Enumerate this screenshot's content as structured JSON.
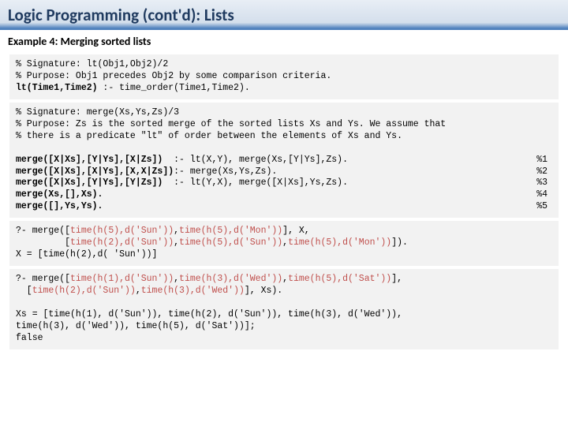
{
  "title": "Logic Programming (cont'd):   Lists",
  "subtitle": "Example 4:  Merging sorted lists",
  "block1": {
    "l1": "% Signature: lt(Obj1,Obj2)/2",
    "l2": "% Purpose: Obj1 precedes Obj2 by some comparison criteria.",
    "l3_pred": "lt(Time1,Time2)",
    "l3_rest": " :- time_order(Time1,Time2)."
  },
  "block2": {
    "l1": "% Signature: merge(Xs,Ys,Zs)/3",
    "l2": "% Purpose: Zs is the sorted merge of the sorted lists Xs and Ys. We assume that",
    "l3": "% there is a predicate \"lt\" of order between the elements of Xs and Ys.",
    "c1_head": "merge([X|Xs],[Y|Ys],[X|Zs])",
    "c1_body": "  :- lt(X,Y), merge(Xs,[Y|Ys],Zs).",
    "c1_tag": "%1",
    "c2_head": "merge([X|Xs],[X|Ys],[X,X|Zs])",
    "c2_body": ":- merge(Xs,Ys,Zs).",
    "c2_tag": "%2",
    "c3_head": "merge([X|Xs],[Y|Ys],[Y|Zs])",
    "c3_body": "  :- lt(Y,X), merge([X|Xs],Ys,Zs).",
    "c3_tag": "%3",
    "c4_head": "merge(Xs,[],Xs).",
    "c4_tag": "%4",
    "c5_head": "merge([],Ys,Ys).",
    "c5_tag": "%5"
  },
  "block3": {
    "q_prefix": "?- merge([",
    "q_t1": "time(h(5),d('Sun'))",
    "q_c1": ",",
    "q_t2": "time(h(5),d('Mon'))",
    "q_suffix1": "], X,",
    "q_indent": "         [",
    "q_t3": "time(h(2),d('Sun'))",
    "q_c2": ",",
    "q_t4": "time(h(5),d('Sun'))",
    "q_c3": ",",
    "q_t5": "time(h(5),d('Mon'))",
    "q_suffix2": "]).",
    "ans": "X = [time(h(2),d( 'Sun'))]"
  },
  "block4": {
    "q_prefix": "?- merge([",
    "q_t1": "time(h(1),d('Sun'))",
    "q_c1": ",",
    "q_t2": "time(h(3),d('Wed'))",
    "q_c2": ",",
    "q_t3": "time(h(5),d('Sat'))",
    "q_suffix1": "],",
    "line2_prefix": "  [",
    "q_t4": "time(h(2),d('Sun'))",
    "q_c3": ",",
    "q_t5": "time(h(3),d('Wed'))",
    "line2_suffix": "], Xs).",
    "ans1": "Xs = [time(h(1), d('Sun')), time(h(2), d('Sun')), time(h(3), d('Wed')),",
    "ans2": "time(h(3), d('Wed')), time(h(5), d('Sat'))];",
    "ans3": "false"
  },
  "colors": {
    "title_text": "#1f3a5f",
    "title_border": "#4f81bd",
    "code_bg": "#f2f2f2",
    "highlight": "#c0504d",
    "body_bg": "#ffffff"
  },
  "fonts": {
    "title_size": 21,
    "subtitle_size": 14,
    "code_size": 11.5
  }
}
